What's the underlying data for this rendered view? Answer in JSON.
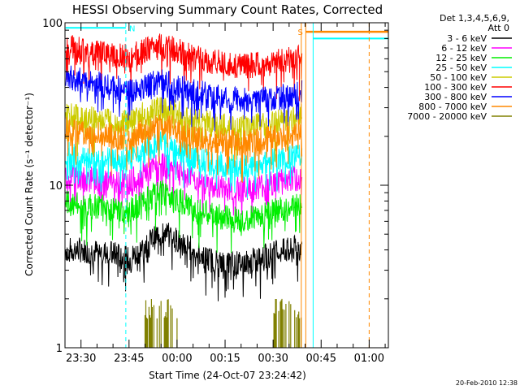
{
  "chart_data": {
    "type": "line",
    "title": "HESSI Observing Summary Count Rates, Corrected",
    "xlabel": "Start Time (24-Oct-07 23:24:42)",
    "ylabel": "Corrected Count Rate (s⁻¹ detector⁻¹)",
    "yscale": "log",
    "ylim": [
      1,
      100
    ],
    "xlim": [
      -5,
      96
    ],
    "x_unit": "minutes after 23:30",
    "x_ticks": [
      {
        "x": 0,
        "label": "23:30"
      },
      {
        "x": 15,
        "label": "23:45"
      },
      {
        "x": 30,
        "label": "00:00"
      },
      {
        "x": 45,
        "label": "00:15"
      },
      {
        "x": 60,
        "label": "00:30"
      },
      {
        "x": 75,
        "label": "00:45"
      },
      {
        "x": 90,
        "label": "01:00"
      }
    ],
    "y_ticks": [
      {
        "y": 1,
        "label": "1"
      },
      {
        "y": 10,
        "label": "10"
      },
      {
        "y": 100,
        "label": "100"
      }
    ],
    "legend_header": [
      "Det 1,3,4,5,6,9,",
      "Att 0"
    ],
    "legend_position": "right",
    "series": [
      {
        "name": "3 - 6 keV",
        "color": "#000000",
        "x": [
          -5,
          0,
          10,
          15,
          20,
          25,
          30,
          35,
          40,
          45,
          50,
          55,
          60,
          65,
          69
        ],
        "values": [
          4.0,
          4.0,
          3.8,
          3.5,
          4.2,
          5.2,
          4.6,
          4.0,
          3.5,
          3.3,
          3.3,
          3.5,
          3.8,
          4.0,
          4.2
        ]
      },
      {
        "name": "6 - 12 keV",
        "color": "#ff00ff",
        "x": [
          -5,
          0,
          10,
          15,
          20,
          25,
          30,
          35,
          40,
          45,
          50,
          55,
          60,
          65,
          69
        ],
        "values": [
          11.5,
          11.0,
          10.5,
          10.5,
          12.0,
          13.5,
          12.5,
          11.0,
          10.0,
          9.6,
          9.4,
          9.8,
          10.3,
          10.8,
          11.2
        ]
      },
      {
        "name": "12 - 25 keV",
        "color": "#00ee00",
        "x": [
          -5,
          0,
          10,
          15,
          20,
          25,
          30,
          35,
          40,
          45,
          50,
          55,
          60,
          65,
          69
        ],
        "values": [
          7.8,
          7.5,
          7.1,
          6.9,
          8.0,
          9.0,
          8.2,
          7.2,
          6.6,
          6.3,
          6.2,
          6.5,
          6.9,
          7.2,
          7.5
        ]
      },
      {
        "name": "25 - 50 keV",
        "color": "#00ffff",
        "x": [
          -5,
          0,
          10,
          15,
          20,
          25,
          30,
          35,
          40,
          45,
          50,
          55,
          60,
          65,
          69
        ],
        "values": [
          15.5,
          15.0,
          14.5,
          14.2,
          16.5,
          18.0,
          16.8,
          15.0,
          13.8,
          13.3,
          13.0,
          13.5,
          14.0,
          14.8,
          15.5
        ]
      },
      {
        "name": "50 - 100 keV",
        "color": "#cccc00",
        "x": [
          -5,
          0,
          10,
          15,
          20,
          25,
          30,
          35,
          40,
          45,
          50,
          55,
          60,
          65,
          69
        ],
        "values": [
          27.0,
          26.0,
          25.0,
          24.5,
          28.0,
          30.0,
          28.0,
          25.5,
          24.0,
          23.0,
          22.5,
          23.2,
          24.2,
          25.5,
          27.0
        ]
      },
      {
        "name": "100 - 300 keV",
        "color": "#ff0000",
        "x": [
          -5,
          0,
          10,
          15,
          20,
          25,
          30,
          35,
          40,
          45,
          50,
          55,
          60,
          65,
          69
        ],
        "values": [
          72.0,
          68.0,
          63.0,
          61.0,
          68.0,
          73.0,
          68.0,
          62.0,
          58.0,
          56.0,
          54.0,
          55.0,
          57.0,
          60.0,
          63.0
        ]
      },
      {
        "name": "300 - 800 keV",
        "color": "#0000ff",
        "x": [
          -5,
          0,
          10,
          15,
          20,
          25,
          30,
          35,
          40,
          45,
          50,
          55,
          60,
          65,
          69
        ],
        "values": [
          47.0,
          44.0,
          40.0,
          38.0,
          41.0,
          44.0,
          41.0,
          38.0,
          35.5,
          34.5,
          33.5,
          33.8,
          34.5,
          35.5,
          37.0
        ]
      },
      {
        "name": "800 - 7000 keV",
        "color": "#ff8800",
        "x": [
          -5,
          0,
          10,
          15,
          20,
          25,
          30,
          35,
          40,
          45,
          50,
          55,
          60,
          65,
          69
        ],
        "values": [
          22.0,
          21.0,
          20.0,
          19.5,
          22.0,
          23.5,
          22.0,
          20.0,
          19.0,
          18.5,
          18.2,
          18.8,
          19.6,
          20.5,
          21.5
        ]
      },
      {
        "name": "7000 - 20000 keV",
        "color": "#808000",
        "x": [
          20,
          25,
          30,
          60,
          65,
          69
        ],
        "values": [
          1.5,
          1.5,
          1.5,
          1.5,
          1.5,
          1.5
        ]
      }
    ],
    "annotations": [
      {
        "text": "N",
        "x": 16,
        "y": 93,
        "color": "#00ffff"
      },
      {
        "text": "S",
        "x": 68.5,
        "y": 88,
        "color": "#ff8800"
      }
    ]
  },
  "footer_date": "20-Feb-2010 12:38"
}
